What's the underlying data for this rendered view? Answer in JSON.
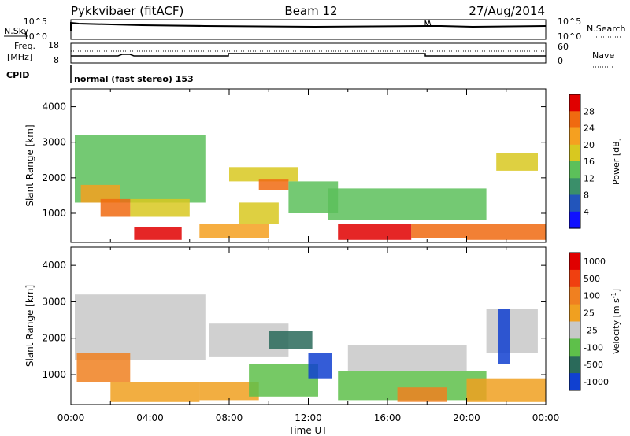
{
  "header": {
    "radar": "Pykkvibaer (fitACF)",
    "beam": "Beam 12",
    "date": "27/Aug/2014"
  },
  "top_panels": {
    "nsky_label": "N.Sky",
    "nsearch_label": "N.Search",
    "noise_ticks": [
      "10^5",
      "10^0"
    ],
    "freq_label_line1": "Freq.",
    "freq_label_line2": "[MHz]",
    "freq_ticks": [
      "18",
      "8"
    ],
    "nave_label": "Nave",
    "nave_ticks": [
      "60",
      "0"
    ],
    "cpid_label": "CPID",
    "cpid_text": "normal (fast stereo) 153"
  },
  "chart_data": [
    {
      "type": "heatmap",
      "name": "power",
      "ylabel": "Slant Range [km]",
      "xlabel": "Time UT",
      "xlim": [
        0,
        24
      ],
      "ylim": [
        180,
        4500
      ],
      "x_ticks": [
        "00:00",
        "04:00",
        "08:00",
        "12:00",
        "16:00",
        "20:00",
        "00:00"
      ],
      "y_ticks": [
        1000,
        2000,
        3000,
        4000
      ],
      "colorbar": {
        "label": "Power [dB]",
        "ticks": [
          "4",
          "8",
          "12",
          "16",
          "20",
          "24",
          "28"
        ],
        "colors": [
          "#1010ff",
          "#2255bb",
          "#3a8f6a",
          "#5cc05a",
          "#d8c820",
          "#f5a020",
          "#f06a10",
          "#e00000"
        ]
      },
      "regions": [
        {
          "t0": 0.2,
          "t1": 6.8,
          "r0": 1300,
          "r1": 3200,
          "level": 3
        },
        {
          "t0": 0.5,
          "t1": 2.5,
          "r0": 1300,
          "r1": 1800,
          "level": 5
        },
        {
          "t0": 1.5,
          "t1": 3.0,
          "r0": 900,
          "r1": 1400,
          "level": 6
        },
        {
          "t0": 3.0,
          "t1": 6.0,
          "r0": 900,
          "r1": 1400,
          "level": 4
        },
        {
          "t0": 3.2,
          "t1": 5.6,
          "r0": 250,
          "r1": 600,
          "level": 7
        },
        {
          "t0": 8.0,
          "t1": 11.5,
          "r0": 1900,
          "r1": 2300,
          "level": 4
        },
        {
          "t0": 9.5,
          "t1": 11.0,
          "r0": 1650,
          "r1": 1950,
          "level": 6
        },
        {
          "t0": 8.5,
          "t1": 10.5,
          "r0": 700,
          "r1": 1300,
          "level": 4
        },
        {
          "t0": 6.5,
          "t1": 10.0,
          "r0": 300,
          "r1": 700,
          "level": 5
        },
        {
          "t0": 11.0,
          "t1": 13.5,
          "r0": 1000,
          "r1": 1900,
          "level": 3
        },
        {
          "t0": 13.0,
          "t1": 21.0,
          "r0": 800,
          "r1": 1700,
          "level": 3
        },
        {
          "t0": 13.5,
          "t1": 17.2,
          "r0": 250,
          "r1": 700,
          "level": 7
        },
        {
          "t0": 17.2,
          "t1": 20.0,
          "r0": 300,
          "r1": 700,
          "level": 6
        },
        {
          "t0": 20.0,
          "t1": 24.0,
          "r0": 250,
          "r1": 700,
          "level": 6
        },
        {
          "t0": 21.5,
          "t1": 23.6,
          "r0": 2200,
          "r1": 2700,
          "level": 4
        }
      ]
    },
    {
      "type": "heatmap",
      "name": "velocity",
      "ylabel": "Slant Range [km]",
      "xlabel": "Time UT",
      "xlim": [
        0,
        24
      ],
      "ylim": [
        180,
        4500
      ],
      "x_ticks": [
        "00:00",
        "04:00",
        "08:00",
        "12:00",
        "16:00",
        "20:00",
        "00:00"
      ],
      "y_ticks": [
        1000,
        2000,
        3000,
        4000
      ],
      "colorbar": {
        "label": "Velocity [m s^-1]",
        "ticks": [
          "1000",
          "500",
          "100",
          "25",
          "-25",
          "-100",
          "-500",
          "-1000"
        ],
        "colors": [
          "#1040d0",
          "#2a6a5a",
          "#5ec04a",
          "#c8c8c8",
          "#f0a020",
          "#f08020",
          "#f04010",
          "#e00000"
        ]
      },
      "regions": [
        {
          "t0": 0.2,
          "t1": 6.8,
          "r0": 1400,
          "r1": 3200,
          "level": 3
        },
        {
          "t0": 0.3,
          "t1": 3.0,
          "r0": 800,
          "r1": 1600,
          "level": 5
        },
        {
          "t0": 2.0,
          "t1": 6.5,
          "r0": 250,
          "r1": 800,
          "level": 4
        },
        {
          "t0": 7.0,
          "t1": 11.0,
          "r0": 1500,
          "r1": 2400,
          "level": 3
        },
        {
          "t0": 6.5,
          "t1": 9.5,
          "r0": 300,
          "r1": 800,
          "level": 4
        },
        {
          "t0": 9.0,
          "t1": 12.5,
          "r0": 400,
          "r1": 1300,
          "level": 2
        },
        {
          "t0": 10.0,
          "t1": 12.2,
          "r0": 1700,
          "r1": 2200,
          "level": 1
        },
        {
          "t0": 12.0,
          "t1": 13.2,
          "r0": 900,
          "r1": 1600,
          "level": 0
        },
        {
          "t0": 13.5,
          "t1": 21.0,
          "r0": 300,
          "r1": 1100,
          "level": 2
        },
        {
          "t0": 14.0,
          "t1": 20.0,
          "r0": 1100,
          "r1": 1800,
          "level": 3
        },
        {
          "t0": 16.5,
          "t1": 19.0,
          "r0": 250,
          "r1": 650,
          "level": 5
        },
        {
          "t0": 20.0,
          "t1": 24.0,
          "r0": 250,
          "r1": 900,
          "level": 4
        },
        {
          "t0": 21.0,
          "t1": 23.6,
          "r0": 1600,
          "r1": 2800,
          "level": 3
        },
        {
          "t0": 21.6,
          "t1": 22.2,
          "r0": 1300,
          "r1": 2800,
          "level": 0
        }
      ]
    }
  ]
}
